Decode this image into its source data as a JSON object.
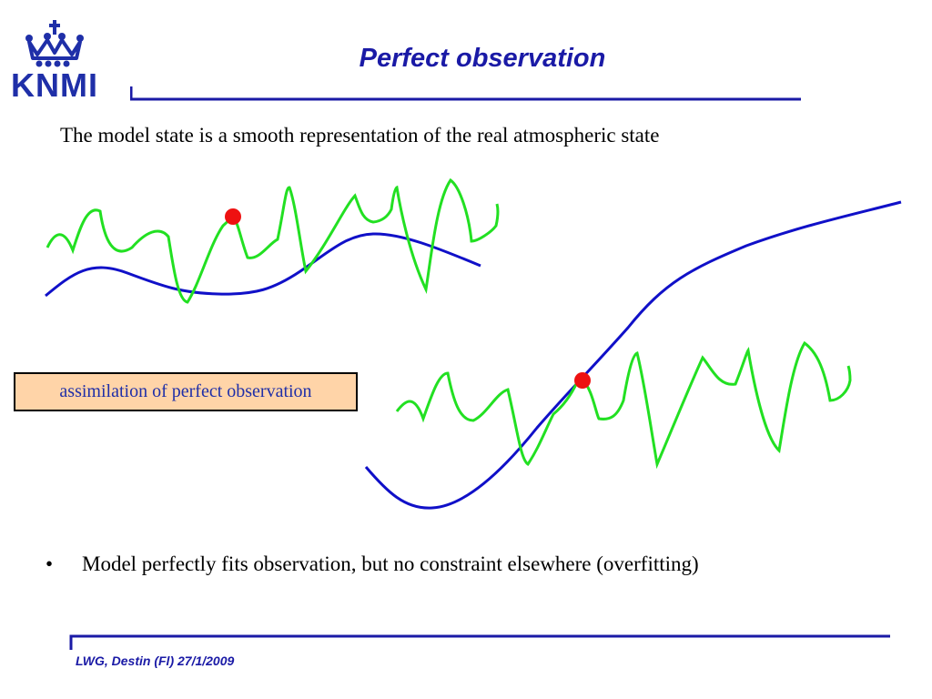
{
  "logo": {
    "text": "KNMI",
    "icon": "crown-icon"
  },
  "title": "Perfect observation",
  "subtitle": "The model state is a smooth representation of the real atmospheric state",
  "label_box": "assimilation of perfect observation",
  "bullet": {
    "marker": "•",
    "text": "Model perfectly fits observation, but no constraint elsewhere (overfitting)"
  },
  "footer": "LWG, Destin (Fl) 27/1/2009",
  "colors": {
    "brand_blue": "#1f2fa8",
    "model_line": "#1010c8",
    "real_state_line": "#22e022",
    "observation_dot": "#ee1111",
    "label_box_fill": "#ffd4a8"
  }
}
